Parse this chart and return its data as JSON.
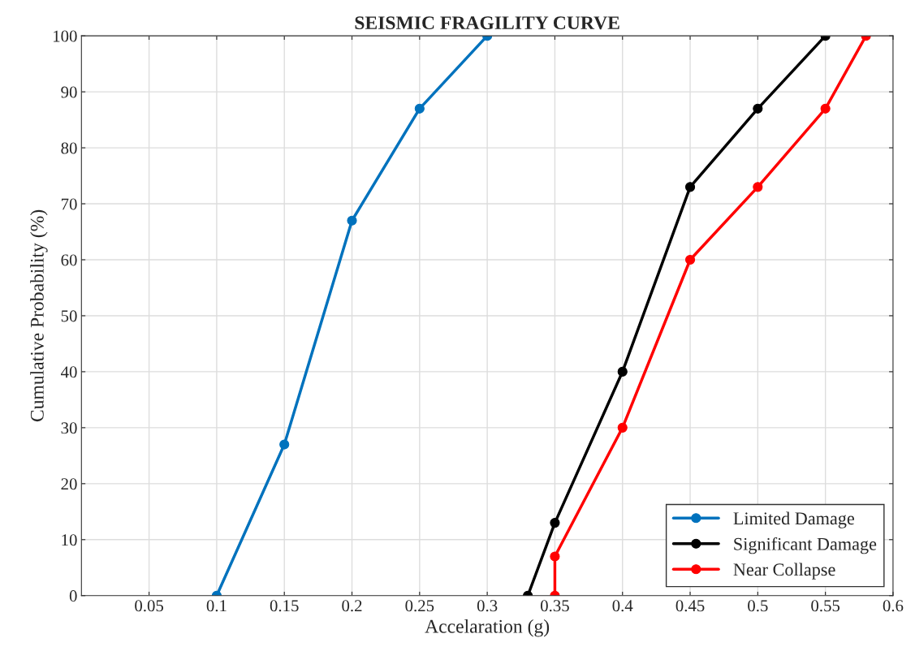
{
  "chart_data": {
    "type": "line",
    "title": "SEISMIC FRAGILITY CURVE",
    "xlabel": "Accelaration (g)",
    "ylabel": "Cumulative Probability (%)",
    "series": [
      {
        "name": "Limited Damage",
        "color": "#0072bd",
        "x": [
          0.1,
          0.15,
          0.2,
          0.25,
          0.3
        ],
        "values": [
          0,
          27,
          67,
          87,
          100
        ]
      },
      {
        "name": "Significant Damage",
        "color": "#000000",
        "x": [
          0.33,
          0.35,
          0.4,
          0.45,
          0.5,
          0.55
        ],
        "values": [
          0,
          13,
          40,
          73,
          87,
          100
        ]
      },
      {
        "name": "Near Collapse",
        "color": "#ff0000",
        "x": [
          0.35,
          0.35,
          0.4,
          0.45,
          0.5,
          0.55,
          0.58
        ],
        "values": [
          0,
          7,
          30,
          60,
          73,
          87,
          100
        ]
      }
    ],
    "xlim": [
      0,
      0.6
    ],
    "xticks": [
      0.05,
      0.1,
      0.15,
      0.2,
      0.25,
      0.3,
      0.35,
      0.4,
      0.45,
      0.5,
      0.55,
      0.6
    ],
    "ylim": [
      0,
      100
    ],
    "yticks": [
      0,
      10,
      20,
      30,
      40,
      50,
      60,
      70,
      80,
      90,
      100
    ],
    "grid": true,
    "legend": "bottom right",
    "marker": "circle",
    "line_style": "solid"
  }
}
